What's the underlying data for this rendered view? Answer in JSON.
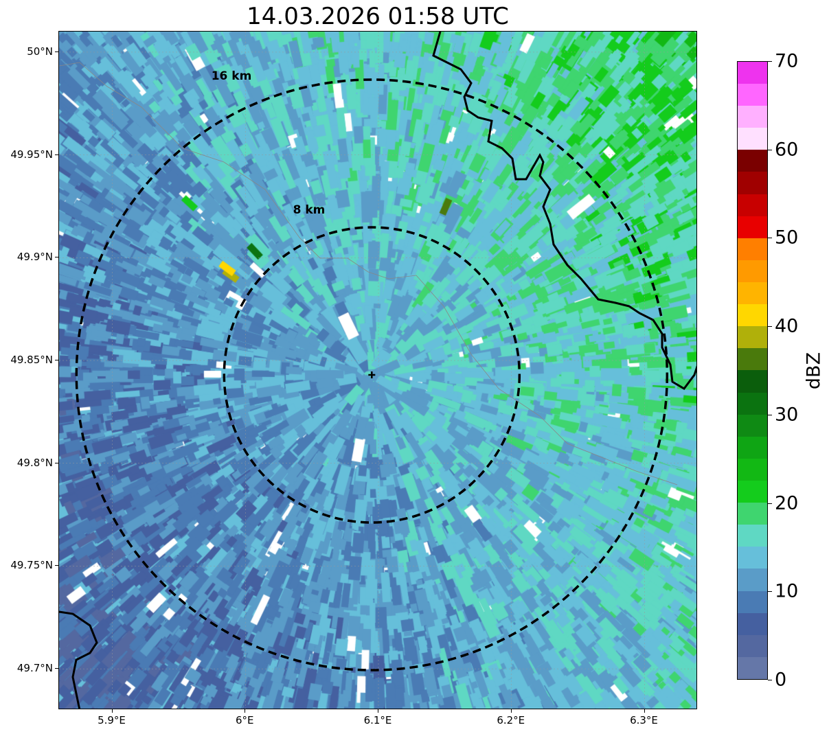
{
  "chart_data": {
    "type": "heatmap",
    "title": "14.03.2026 01:58 UTC",
    "x_ticks": [
      "5.9°E",
      "6°E",
      "6.1°E",
      "6.2°E",
      "6.3°E"
    ],
    "x_tick_values": [
      5.9,
      6.0,
      6.1,
      6.2,
      6.3
    ],
    "y_ticks": [
      "50°N",
      "49.95°N",
      "49.9°N",
      "49.85°N",
      "49.8°N",
      "49.75°N",
      "49.7°N"
    ],
    "y_tick_values": [
      50.0,
      49.95,
      49.9,
      49.85,
      49.8,
      49.75,
      49.7
    ],
    "xlim": [
      5.86,
      6.34
    ],
    "ylim": [
      49.68,
      50.01
    ],
    "radar_site": {
      "lon": 6.095,
      "lat": 49.843
    },
    "range_rings": [
      {
        "label": "8 km",
        "radius_km": 8
      },
      {
        "label": "16 km",
        "radius_km": 16
      }
    ],
    "colorbar": {
      "label": "dBZ",
      "range": [
        0,
        70
      ],
      "step": 2.5,
      "ticks": [
        "0",
        "10",
        "20",
        "30",
        "40",
        "50",
        "60",
        "70"
      ],
      "tick_values": [
        0,
        10,
        20,
        30,
        40,
        50,
        60,
        70
      ],
      "colors": [
        "#6577a8",
        "#5468a0",
        "#4560a0",
        "#4a7bb4",
        "#5a9cc8",
        "#66bfda",
        "#5fd8c3",
        "#3fd56f",
        "#14cc1c",
        "#12b814",
        "#0fa514",
        "#0f8a14",
        "#0b7310",
        "#0b5e0c",
        "#4a7a0c",
        "#b0b00a",
        "#ffd700",
        "#ffb400",
        "#ff9a00",
        "#ff7f00",
        "#e80000",
        "#c80000",
        "#a00000",
        "#7a0000",
        "#ffe0ff",
        "#ffb0ff",
        "#ff66ff",
        "#ee33ee"
      ]
    }
  }
}
